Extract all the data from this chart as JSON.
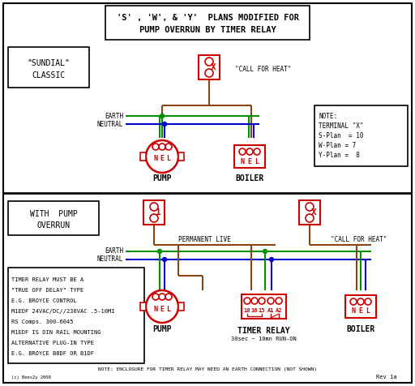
{
  "title_line1": "'S' , 'W', & 'Y'  PLANS MODIFIED FOR",
  "title_line2": "PUMP OVERRUN BY TIMER RELAY",
  "bg_color": "#ffffff",
  "red": "#cc0000",
  "green": "#009000",
  "blue": "#0000cc",
  "brown": "#8B4513",
  "black": "#000000",
  "note_top": [
    "NOTE:",
    "TERMINAL \"X\"",
    "S-Plan  = 10",
    "W-Plan = 7",
    "Y-Plan =  8"
  ],
  "note_bottom": [
    "TIMER RELAY MUST BE A",
    "\"TRUE OFF DELAY\" TYPE",
    "E.G. BROYCE CONTROL",
    "M1EDF 24VAC/DC//230VAC .5-10MI",
    "RS Comps. 300-6045",
    "M1EDF IS DIN RAIL MOUNTING",
    "ALTERNATIVE PLUG-IN TYPE",
    "E.G. BROYCE B8DF OR B1DF"
  ],
  "bottom_note": "NOTE: ENCLOSURE FOR TIMER RELAY MAY NEED AN EARTH CONNECTION (NOT SHOWN)",
  "footer_right": "Rev 1a"
}
